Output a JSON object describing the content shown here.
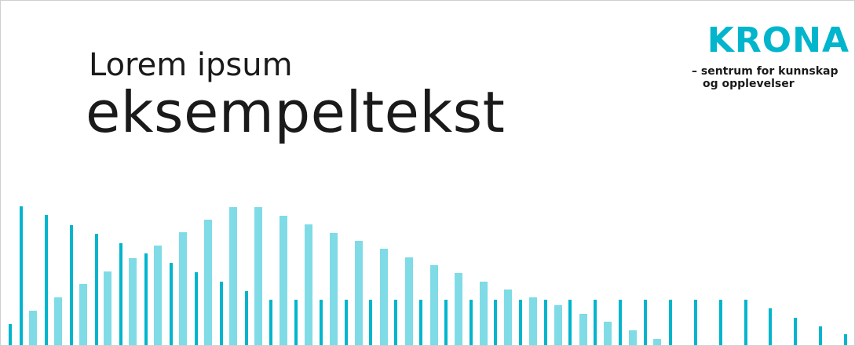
{
  "headline": {
    "line1": "Lorem ipsum",
    "line2": "eksempeltekst"
  },
  "logo": {
    "wordmark": "KRONA",
    "tagline_line1": "– sentrum for kunnskap",
    "tagline_line2": "og opplevelser"
  },
  "colors": {
    "dark_teal": "#00b5cc",
    "light_teal": "#7fdbe6",
    "text": "#1a1a1a"
  }
}
